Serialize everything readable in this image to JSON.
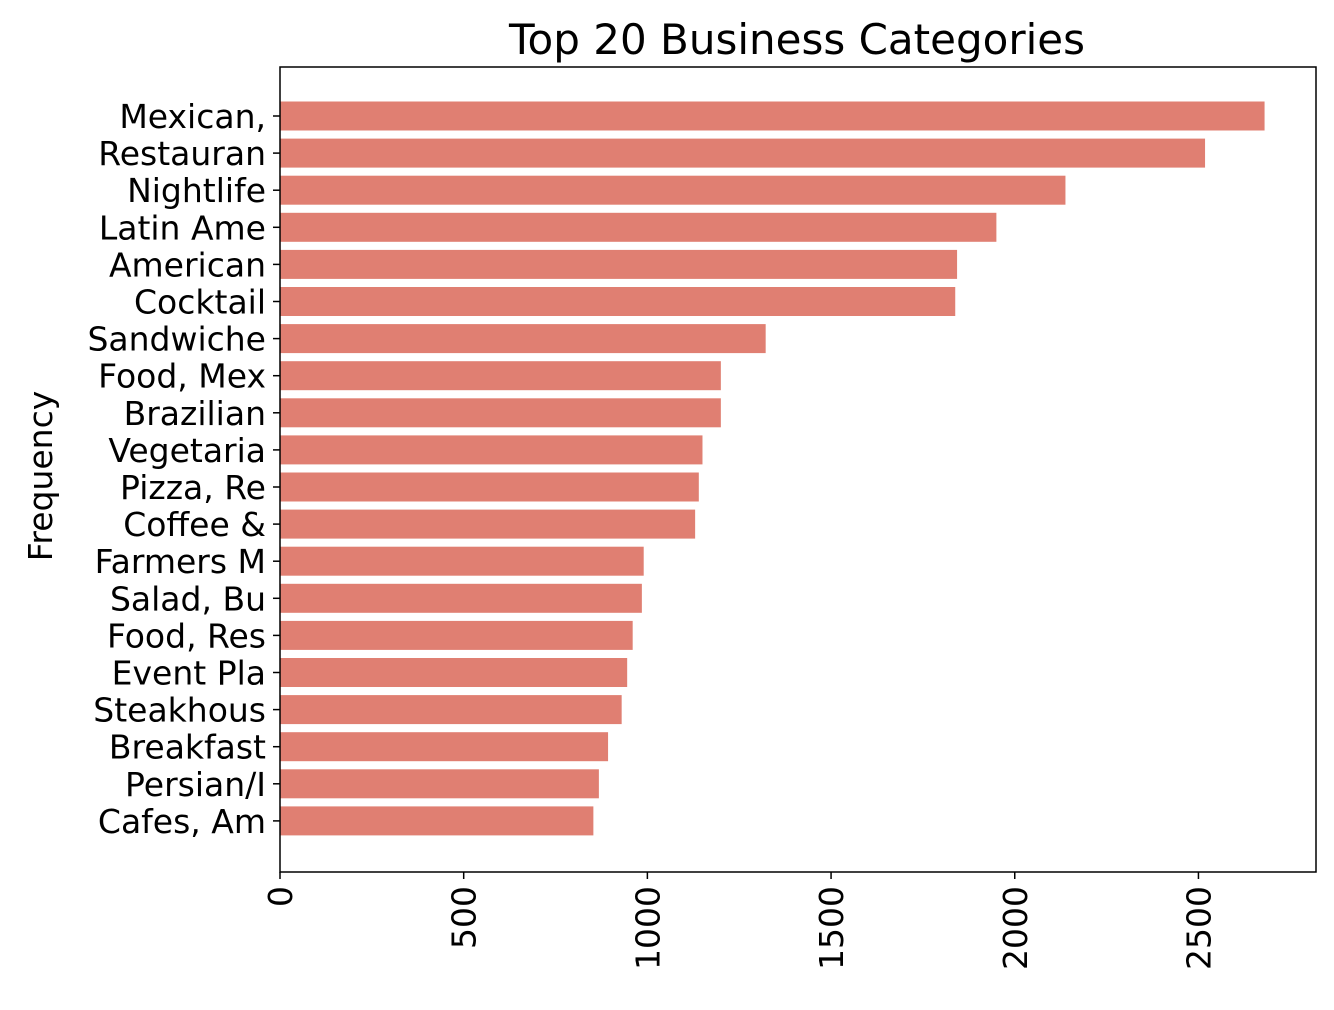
{
  "chart_data": {
    "type": "bar",
    "orientation": "horizontal",
    "title": "Top 20 Business Categories",
    "xlabel": "",
    "ylabel": "Frequency",
    "xlim": [
      0,
      2820
    ],
    "xticks": [
      0,
      500,
      1000,
      1500,
      2000,
      2500
    ],
    "grid": false,
    "bar_color": "#e07f72",
    "categories": [
      "Mexican,",
      "Restauran",
      "Nightlife",
      "Latin Ame",
      "American",
      "Cocktail",
      "Sandwiche",
      "Food, Mex",
      "Brazilian",
      "Vegetaria",
      "Pizza, Re",
      "Coffee &",
      "Farmers M",
      "Salad, Bu",
      "Food, Res",
      "Event Pla",
      "Steakhous",
      "Breakfast",
      "Persian/I",
      "Cafes, Am"
    ],
    "values": [
      2680,
      2518,
      2138,
      1950,
      1843,
      1838,
      1322,
      1200,
      1200,
      1150,
      1140,
      1130,
      990,
      985,
      960,
      945,
      930,
      893,
      868,
      853
    ]
  }
}
